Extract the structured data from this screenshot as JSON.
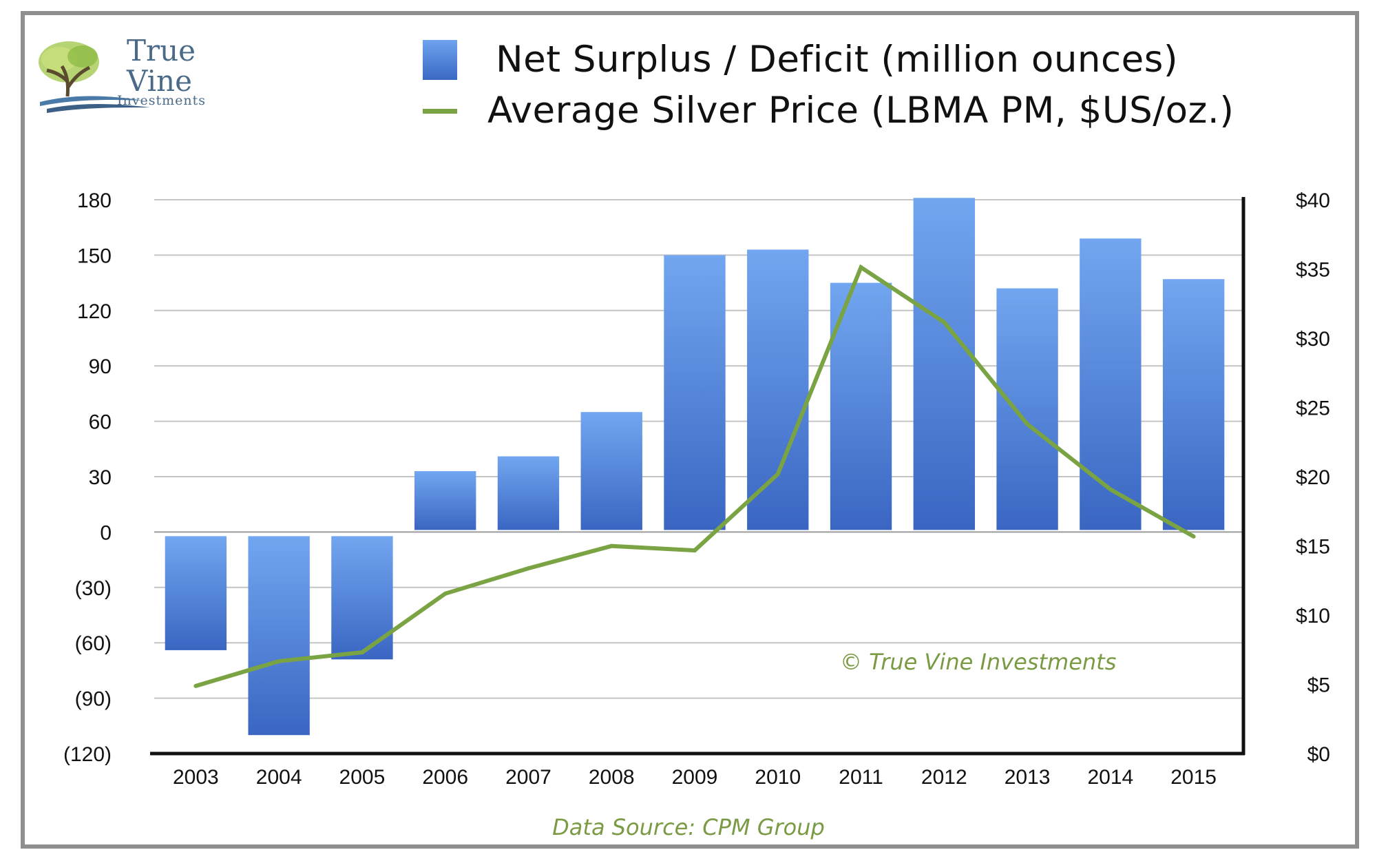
{
  "logo": {
    "line1": "True",
    "line2": "Vine",
    "line3": "Investments"
  },
  "chart_data": {
    "type": "bar+line",
    "legend": [
      {
        "label": "Net Surplus / Deficit (million ounces)",
        "kind": "bar",
        "color": "#4a7fdc"
      },
      {
        "label": "Average Silver Price (LBMA PM, $US/oz.)",
        "kind": "line",
        "color": "#7aa343"
      }
    ],
    "categories": [
      "2003",
      "2004",
      "2005",
      "2006",
      "2007",
      "2008",
      "2009",
      "2010",
      "2011",
      "2012",
      "2013",
      "2014",
      "2015"
    ],
    "series": [
      {
        "name": "Net Surplus / Deficit (million ounces)",
        "type": "bar",
        "axis": "left",
        "values": [
          -64,
          -110,
          -69,
          33,
          41,
          65,
          150,
          153,
          135,
          181,
          132,
          159,
          137
        ]
      },
      {
        "name": "Average Silver Price (LBMA PM, $US/oz.)",
        "type": "line",
        "axis": "right",
        "values": [
          4.88,
          6.67,
          7.31,
          11.55,
          13.38,
          14.99,
          14.67,
          20.19,
          35.12,
          31.15,
          23.79,
          19.08,
          15.68
        ]
      }
    ],
    "left_axis": {
      "range": [
        -120,
        180
      ],
      "tick_values": [
        180,
        150,
        120,
        90,
        60,
        30,
        0,
        -30,
        -60,
        -90,
        -120
      ],
      "tick_labels": [
        "180",
        "150",
        "120",
        "90",
        "60",
        "30",
        "0",
        "(30)",
        "(60)",
        "(90)",
        "(120)"
      ]
    },
    "right_axis": {
      "range": [
        0,
        40
      ],
      "tick_values": [
        40,
        35,
        30,
        25,
        20,
        15,
        10,
        5,
        0
      ],
      "tick_labels": [
        "$40",
        "$35",
        "$30",
        "$25",
        "$20",
        "$15",
        "$10",
        "$5",
        "$0"
      ]
    },
    "watermark": "© True Vine Investments",
    "source": "Data Source: CPM Group"
  }
}
